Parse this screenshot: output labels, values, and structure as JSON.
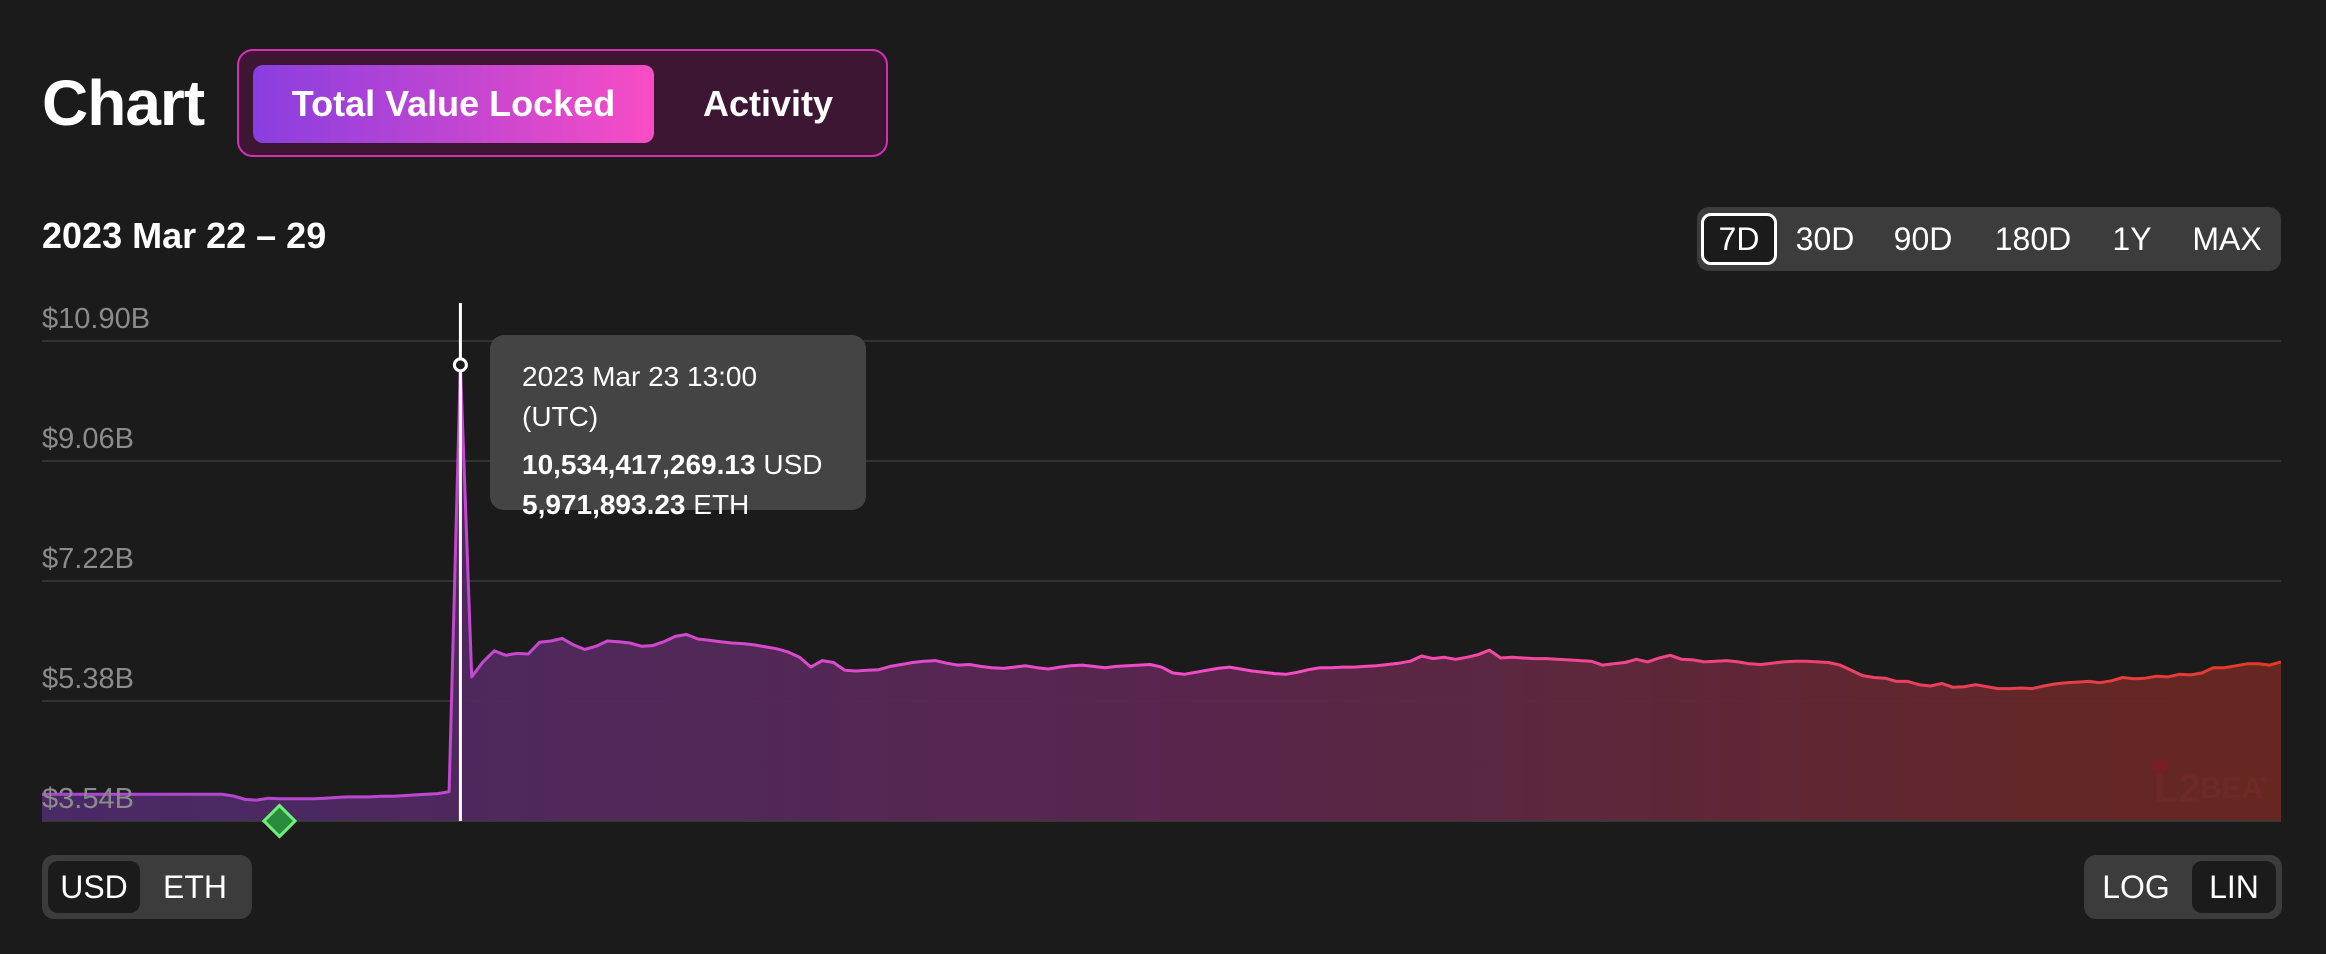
{
  "header": {
    "title": "Chart",
    "tabs": [
      {
        "label": "Total Value Locked",
        "selected": true
      },
      {
        "label": "Activity",
        "selected": false
      }
    ]
  },
  "range": {
    "label": "2023 Mar 22 – 29",
    "options": [
      "7D",
      "30D",
      "90D",
      "180D",
      "1Y",
      "MAX"
    ],
    "selected": "7D"
  },
  "unit_toggle": {
    "options": [
      "USD",
      "ETH"
    ],
    "selected": "USD"
  },
  "scale_toggle": {
    "options": [
      "LOG",
      "LIN"
    ],
    "selected": "LIN"
  },
  "tooltip": {
    "date": "2023 Mar 23 13:00 (UTC)",
    "usd_value": "10,534,417,269.13",
    "usd_unit": "USD",
    "eth_value": "5,971,893.23",
    "eth_unit": "ETH"
  },
  "colors": {
    "accent_purple": "#a746d4",
    "accent_pink": "#f94cc5",
    "line_end_red": "#e23a25",
    "background": "#1b1b1b"
  },
  "chart_data": {
    "type": "area",
    "title": "",
    "ylabel": "",
    "xlabel": "",
    "y_tick_labels": [
      "$10.90B",
      "$9.06B",
      "$7.22B",
      "$5.38B",
      "$3.54B"
    ],
    "y_ticks": [
      10.9,
      9.06,
      7.22,
      5.38,
      3.54
    ],
    "ylim": [
      3.54,
      10.9
    ],
    "y_unit": "USD billions",
    "x_range": [
      "2023-03-22T00:00",
      "2023-03-29T23:00"
    ],
    "grid": true,
    "hovered_index": 37,
    "hovered_value": 10.534,
    "event_marker_index": 21,
    "series": [
      {
        "values": [
          3.95,
          3.95,
          3.95,
          3.95,
          3.95,
          3.95,
          3.95,
          3.95,
          3.95,
          3.95,
          3.95,
          3.95,
          3.95,
          3.95,
          3.95,
          3.95,
          3.95,
          3.92,
          3.87,
          3.86,
          3.89,
          3.88,
          3.88,
          3.88,
          3.88,
          3.89,
          3.9,
          3.91,
          3.91,
          3.91,
          3.92,
          3.92,
          3.93,
          3.94,
          3.95,
          3.96,
          3.99,
          10.534,
          5.75,
          5.98,
          6.15,
          6.08,
          6.11,
          6.1,
          6.28,
          6.3,
          6.34,
          6.24,
          6.17,
          6.22,
          6.3,
          6.29,
          6.27,
          6.22,
          6.23,
          6.29,
          6.37,
          6.4,
          6.33,
          6.31,
          6.29,
          6.27,
          6.26,
          6.24,
          6.21,
          6.18,
          6.13,
          6.05,
          5.9,
          6.0,
          5.97,
          5.85,
          5.84,
          5.85,
          5.86,
          5.91,
          5.94,
          5.97,
          5.99,
          6.0,
          5.96,
          5.93,
          5.94,
          5.91,
          5.89,
          5.88,
          5.9,
          5.92,
          5.89,
          5.87,
          5.9,
          5.92,
          5.93,
          5.91,
          5.89,
          5.91,
          5.92,
          5.93,
          5.94,
          5.9,
          5.81,
          5.79,
          5.82,
          5.85,
          5.88,
          5.9,
          5.87,
          5.84,
          5.82,
          5.8,
          5.79,
          5.82,
          5.86,
          5.89,
          5.89,
          5.9,
          5.9,
          5.91,
          5.92,
          5.94,
          5.96,
          5.99,
          6.07,
          6.03,
          6.05,
          6.02,
          6.05,
          6.09,
          6.16,
          6.04,
          6.05,
          6.04,
          6.03,
          6.03,
          6.02,
          6.01,
          6.0,
          5.99,
          5.93,
          5.95,
          5.97,
          6.02,
          5.98,
          6.04,
          6.08,
          6.02,
          6.01,
          5.98,
          5.99,
          6.0,
          5.98,
          5.95,
          5.94,
          5.96,
          5.98,
          5.99,
          5.99,
          5.98,
          5.97,
          5.93,
          5.85,
          5.77,
          5.74,
          5.73,
          5.68,
          5.68,
          5.63,
          5.61,
          5.65,
          5.59,
          5.6,
          5.63,
          5.6,
          5.57,
          5.57,
          5.58,
          5.57,
          5.61,
          5.64,
          5.66,
          5.67,
          5.68,
          5.66,
          5.69,
          5.74,
          5.72,
          5.73,
          5.76,
          5.75,
          5.79,
          5.78,
          5.81,
          5.89,
          5.89,
          5.92,
          5.95,
          5.95,
          5.93,
          5.98
        ]
      }
    ]
  }
}
